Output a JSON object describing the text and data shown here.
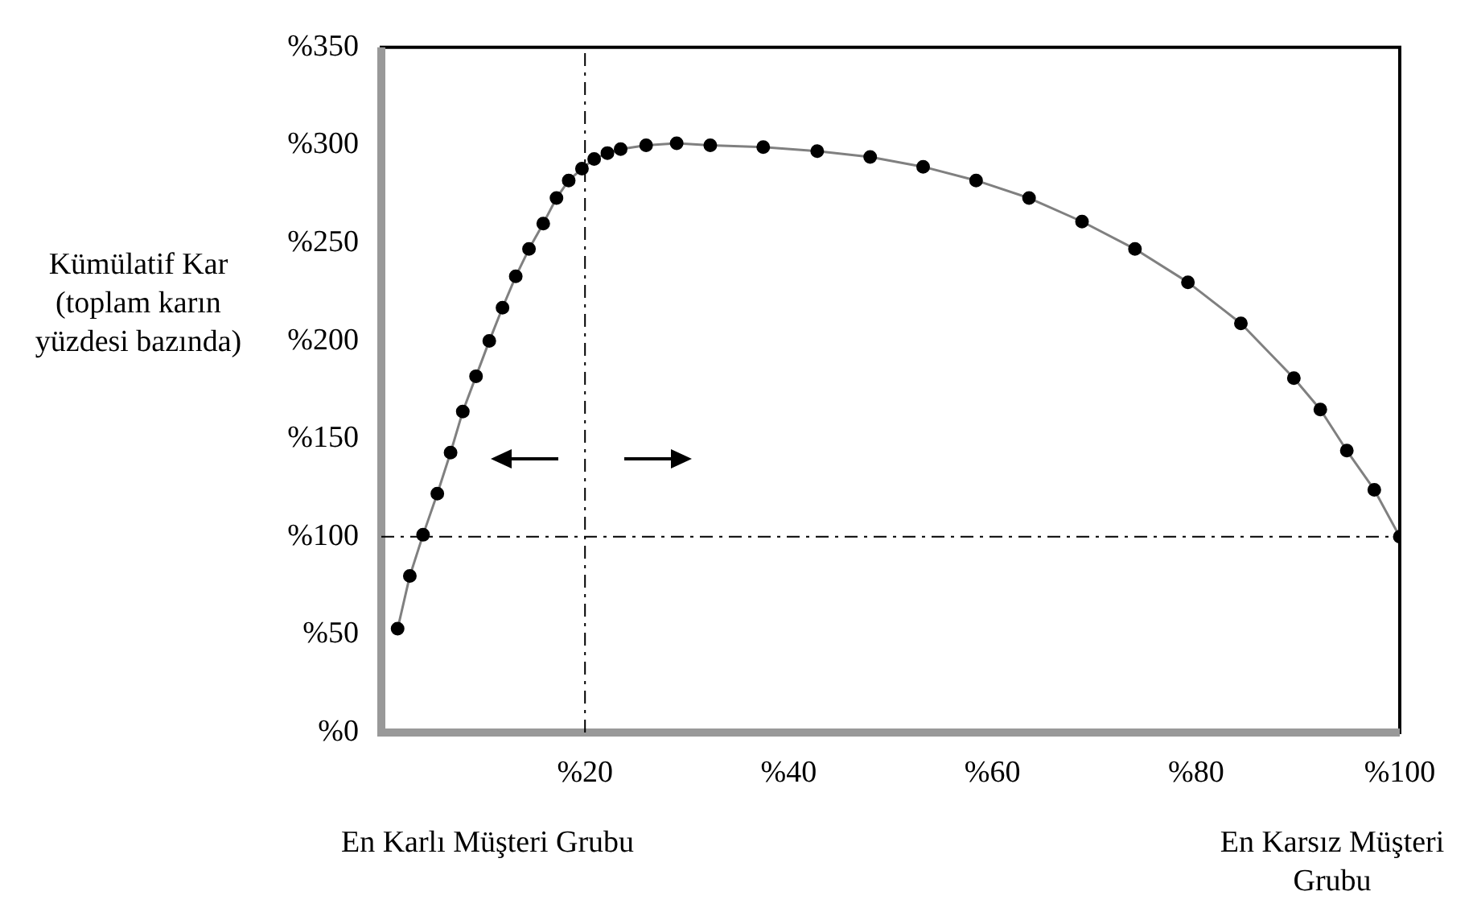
{
  "chart_data": {
    "type": "line",
    "ylabel": "Kümülatif Kar (toplam karın yüzdesi bazında)",
    "annotations": [
      "En Karlı Müşteri Grubu",
      "En Karsız Müşteri Grubu"
    ],
    "series": [
      {
        "color": "#000000",
        "x": [
          1.6,
          2.8,
          4.1,
          5.5,
          6.8,
          8.0,
          9.3,
          10.6,
          11.9,
          13.2,
          14.5,
          15.9,
          17.2,
          18.4,
          19.7,
          20.9,
          22.2,
          23.5,
          26,
          29,
          32.3,
          37.5,
          42.8,
          48,
          53.2,
          58.4,
          63.6,
          68.8,
          74,
          79.2,
          84.4,
          89.6,
          92.2,
          94.8,
          97.5,
          100
        ],
        "values": [
          53,
          80,
          101,
          122,
          143,
          164,
          182,
          200,
          217,
          233,
          247,
          260,
          273,
          282,
          288,
          293,
          296,
          298,
          300,
          301,
          300,
          299,
          297,
          294,
          289,
          282,
          273,
          261,
          247,
          230,
          209,
          181,
          165,
          144,
          124,
          100
        ]
      }
    ],
    "xlim": [
      0,
      100
    ],
    "xticks": [
      {
        "value": 20,
        "label": "%20"
      },
      {
        "value": 40,
        "label": "%40"
      },
      {
        "value": 60,
        "label": "%60"
      },
      {
        "value": 80,
        "label": "%80"
      },
      {
        "value": 100,
        "label": "%100"
      }
    ],
    "ylim": [
      0,
      350
    ],
    "yticks": [
      {
        "value": 0,
        "label": "%0"
      },
      {
        "value": 50,
        "label": "%50"
      },
      {
        "value": 100,
        "label": "%100"
      },
      {
        "value": 150,
        "label": "%150"
      },
      {
        "value": 200,
        "label": "%200"
      },
      {
        "value": 250,
        "label": "%250"
      },
      {
        "value": 300,
        "label": "%300"
      },
      {
        "value": 350,
        "label": "%350"
      }
    ],
    "ref_lines": [
      {
        "axis": "x",
        "value": 20,
        "line_style": "dashdot",
        "color": "#000000"
      },
      {
        "axis": "y",
        "value": 100,
        "line_style": "dashdot",
        "color": "#000000"
      }
    ],
    "marker": "circle",
    "line_style": "solid"
  }
}
